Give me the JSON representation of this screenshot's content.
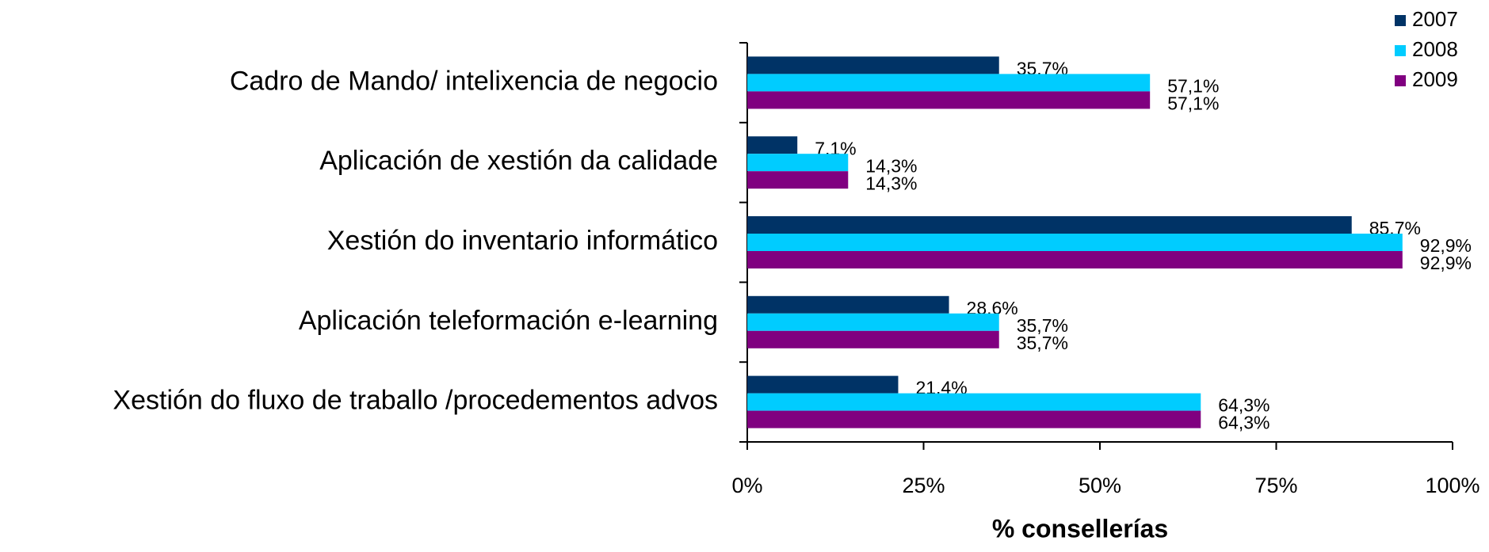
{
  "chart_data": {
    "type": "barh",
    "categories": [
      "Cadro de Mando/ intelixencia de negocio",
      "Aplicación de xestión da calidade",
      "Xestión do inventario informático",
      "Aplicación teleformación e-learning",
      "Xestión do fluxo de traballo /procedementos advos"
    ],
    "series": [
      {
        "name": "2007",
        "color": "#003366",
        "values": [
          35.7,
          7.1,
          85.7,
          28.6,
          21.4
        ],
        "value_labels": [
          "35,7%",
          "7,1%",
          "85,7%",
          "28,6%",
          "21,4%"
        ]
      },
      {
        "name": "2008",
        "color": "#00ccff",
        "values": [
          57.1,
          14.3,
          92.9,
          35.7,
          64.3
        ],
        "value_labels": [
          "57,1%",
          "14,3%",
          "92,9%",
          "35,7%",
          "64,3%"
        ]
      },
      {
        "name": "2009",
        "color": "#800080",
        "values": [
          57.1,
          14.3,
          92.9,
          35.7,
          64.3
        ],
        "value_labels": [
          "57,1%",
          "14,3%",
          "92,9%",
          "35,7%",
          "64,3%"
        ]
      }
    ],
    "xlim": [
      0,
      100
    ],
    "xticks": [
      {
        "value": 0,
        "label": "0%"
      },
      {
        "value": 25,
        "label": "25%"
      },
      {
        "value": 50,
        "label": "50%"
      },
      {
        "value": 75,
        "label": "75%"
      },
      {
        "value": 100,
        "label": "100%"
      }
    ],
    "xlabel": "% consellerías",
    "legend": "top-right"
  }
}
